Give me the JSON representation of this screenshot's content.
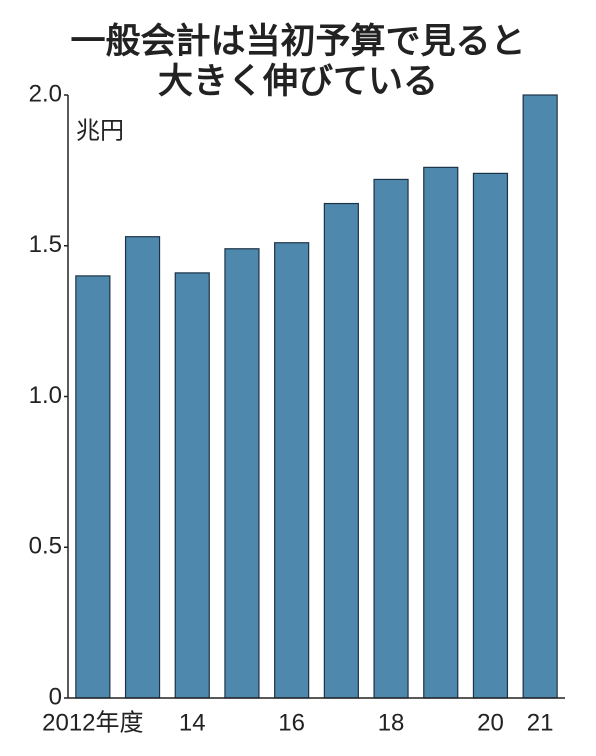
{
  "chart_data": {
    "type": "bar",
    "title": [
      "一般会計は当初予算で見ると",
      "大きく伸びている"
    ],
    "unit": "兆円",
    "categories": [
      "2012年度",
      null,
      "14",
      null,
      "16",
      null,
      "18",
      null,
      "20",
      "21"
    ],
    "values": [
      1.4,
      1.53,
      1.41,
      1.49,
      1.51,
      1.64,
      1.72,
      1.76,
      1.74,
      2.0
    ],
    "color": "#4f88ad",
    "ylim": [
      0,
      2
    ],
    "yticks": [
      0,
      0.5,
      {
        "value": 1,
        "label": "1.0"
      },
      1.5,
      {
        "value": 2,
        "label": "2.0"
      }
    ]
  }
}
